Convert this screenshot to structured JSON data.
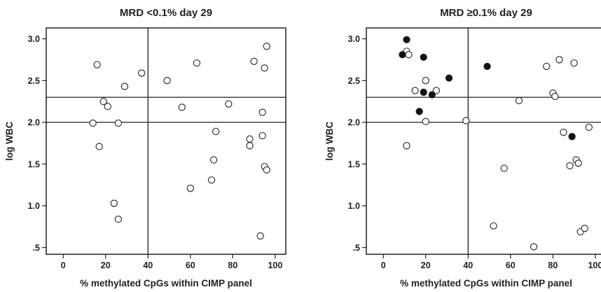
{
  "chart_data": [
    {
      "type": "scatter",
      "title": "MRD <0.1% day 29",
      "xlabel": "% methylated CpGs within CIMP panel",
      "ylabel": "log WBC",
      "xlim": [
        -8,
        105
      ],
      "ylim": [
        0.42,
        3.13
      ],
      "xticks": [
        0,
        20,
        40,
        60,
        80,
        100
      ],
      "xtick_labels": [
        "0",
        "20",
        "40",
        "60",
        "80",
        "100"
      ],
      "yticks": [
        0.5,
        1.0,
        1.5,
        2.0,
        2.5,
        3.0
      ],
      "ytick_labels": [
        ".5",
        "1.0",
        "1.5",
        "2.0",
        "2.5",
        "3.0"
      ],
      "reference_lines": {
        "x": [
          40
        ],
        "y": [
          2.0,
          2.3
        ]
      },
      "grid": false,
      "series": [
        {
          "marker": "open",
          "points": [
            [
              16,
              2.69
            ],
            [
              37,
              2.59
            ],
            [
              29,
              2.43
            ],
            [
              19,
              2.25
            ],
            [
              21,
              2.19
            ],
            [
              14,
              1.99
            ],
            [
              26,
              1.99
            ],
            [
              17,
              1.71
            ],
            [
              24,
              1.03
            ],
            [
              26,
              0.84
            ],
            [
              49,
              2.5
            ],
            [
              63,
              2.71
            ],
            [
              56,
              2.18
            ],
            [
              78,
              2.22
            ],
            [
              72,
              1.89
            ],
            [
              71,
              1.55
            ],
            [
              60,
              1.21
            ],
            [
              70,
              1.31
            ],
            [
              90,
              2.73
            ],
            [
              96,
              2.91
            ],
            [
              95,
              2.65
            ],
            [
              94,
              2.12
            ],
            [
              94,
              1.84
            ],
            [
              88,
              1.8
            ],
            [
              88,
              1.72
            ],
            [
              95,
              1.47
            ],
            [
              96,
              1.43
            ],
            [
              93,
              0.64
            ]
          ]
        }
      ]
    },
    {
      "type": "scatter",
      "title": "MRD ≥0.1% day 29",
      "xlabel": "% methylated CpGs within CIMP panel",
      "ylabel": "log WBC",
      "xlim": [
        -8,
        105
      ],
      "ylim": [
        0.42,
        3.13
      ],
      "xticks": [
        0,
        20,
        40,
        60,
        80,
        100
      ],
      "xtick_labels": [
        "0",
        "20",
        "40",
        "60",
        "80",
        "100"
      ],
      "yticks": [
        0.5,
        1.0,
        1.5,
        2.0,
        2.5,
        3.0
      ],
      "ytick_labels": [
        ".5",
        "1.0",
        "1.5",
        "2.0",
        "2.5",
        "3.0"
      ],
      "reference_lines": {
        "x": [
          40
        ],
        "y": [
          2.0,
          2.3
        ]
      },
      "grid": false,
      "series": [
        {
          "marker": "open",
          "points": [
            [
              11,
              2.85
            ],
            [
              12,
              2.81
            ],
            [
              20,
              2.5
            ],
            [
              15,
              2.38
            ],
            [
              25,
              2.38
            ],
            [
              20,
              2.01
            ],
            [
              11,
              1.72
            ],
            [
              39,
              2.02
            ],
            [
              57,
              1.45
            ],
            [
              52,
              0.76
            ],
            [
              71,
              0.51
            ],
            [
              64,
              2.26
            ],
            [
              77,
              2.67
            ],
            [
              83,
              2.75
            ],
            [
              90,
              2.71
            ],
            [
              80,
              2.35
            ],
            [
              81,
              2.31
            ],
            [
              85,
              1.88
            ],
            [
              97,
              1.94
            ],
            [
              91,
              1.55
            ],
            [
              92,
              1.51
            ],
            [
              88,
              1.48
            ],
            [
              93,
              0.69
            ],
            [
              95,
              0.73
            ]
          ]
        },
        {
          "marker": "filled",
          "points": [
            [
              11,
              2.99
            ],
            [
              9,
              2.81
            ],
            [
              19,
              2.78
            ],
            [
              49,
              2.67
            ],
            [
              31,
              2.53
            ],
            [
              19,
              2.36
            ],
            [
              23,
              2.33
            ],
            [
              17,
              2.13
            ],
            [
              89,
              1.83
            ]
          ]
        }
      ]
    }
  ]
}
